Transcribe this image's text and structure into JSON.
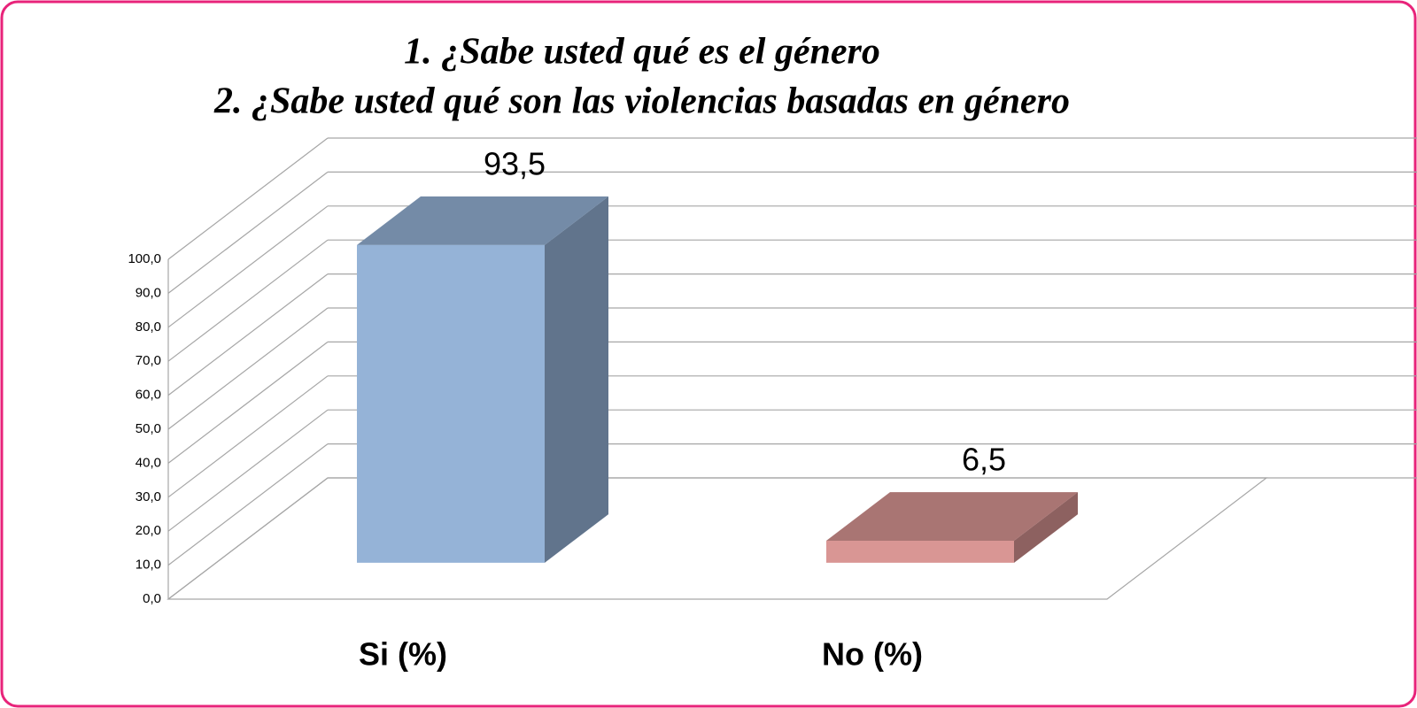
{
  "chart_data": {
    "type": "bar3d",
    "title": [
      "1.  ¿Sabe usted qué es el género",
      "2.  ¿Sabe usted qué son las violencias basadas en género"
    ],
    "categories": [
      "Si (%)",
      "No (%)"
    ],
    "values": [
      93.5,
      6.5
    ],
    "value_labels": [
      "93,5",
      "6,5"
    ],
    "colors": [
      "#95b3d7",
      "#d99694"
    ],
    "ylim": [
      0,
      100
    ],
    "yticks": [
      {
        "value": 0,
        "label": "0,0"
      },
      {
        "value": 10,
        "label": "10,0"
      },
      {
        "value": 20,
        "label": "20,0"
      },
      {
        "value": 30,
        "label": "30,0"
      },
      {
        "value": 40,
        "label": "40,0"
      },
      {
        "value": 50,
        "label": "50,0"
      },
      {
        "value": 60,
        "label": "60,0"
      },
      {
        "value": 70,
        "label": "70,0"
      },
      {
        "value": 80,
        "label": "80,0"
      },
      {
        "value": 90,
        "label": "90,0"
      },
      {
        "value": 100,
        "label": "100,0"
      }
    ],
    "grid": true
  }
}
